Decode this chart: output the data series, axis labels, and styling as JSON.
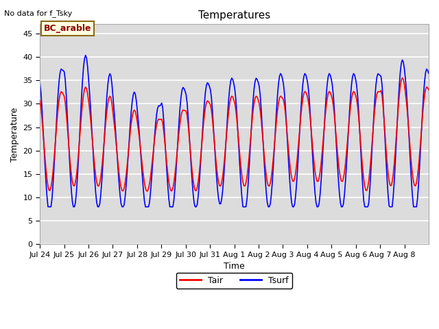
{
  "title": "Temperatures",
  "xlabel": "Time",
  "ylabel": "Temperature",
  "note": "No data for f_Tsky",
  "legend_label": "BC_arable",
  "tair_label": "Tair",
  "tsurf_label": "Tsurf",
  "ylim": [
    0,
    47
  ],
  "yticks": [
    0,
    5,
    10,
    15,
    20,
    25,
    30,
    35,
    40,
    45
  ],
  "plot_bg_color": "#dcdcdc",
  "tair_color": "red",
  "tsurf_color": "blue",
  "line_width": 1.2,
  "x_tick_labels": [
    "Jul 24",
    "Jul 25",
    "Jul 26",
    "Jul 27",
    "Jul 28",
    "Jul 29",
    "Jul 30",
    "Jul 31",
    "Aug 1",
    "Aug 2",
    "Aug 3",
    "Aug 4",
    "Aug 5",
    "Aug 6",
    "Aug 7",
    "Aug 8"
  ]
}
